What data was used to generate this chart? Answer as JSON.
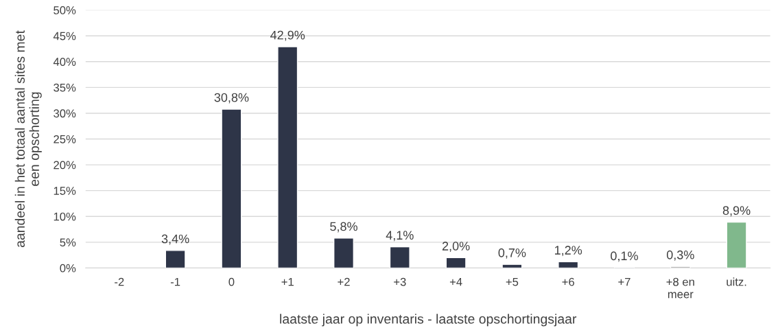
{
  "chart_data": {
    "type": "bar",
    "xlabel": "laatste jaar op inventaris - laatste opschortingsjaar",
    "ylabel": "aandeel in het totaal aantal sites met\neen opschorting",
    "categories": [
      "-2",
      "-1",
      "0",
      "+1",
      "+2",
      "+3",
      "+4",
      "+5",
      "+6",
      "+7",
      "+8 en\nmeer",
      "uitz."
    ],
    "values": [
      null,
      3.4,
      30.8,
      42.9,
      5.8,
      4.1,
      2.0,
      0.7,
      1.2,
      0.1,
      0.3,
      8.9
    ],
    "value_labels": [
      null,
      "3,4%",
      "30,8%",
      "42,9%",
      "5,8%",
      "4,1%",
      "2,0%",
      "0,7%",
      "1,2%",
      "0,1%",
      "0,3%",
      "8,9%"
    ],
    "colors": [
      "#2e3548",
      "#2e3548",
      "#2e3548",
      "#2e3548",
      "#2e3548",
      "#2e3548",
      "#2e3548",
      "#2e3548",
      "#2e3548",
      "#2e3548",
      "#a6a6a6",
      "#80b88c"
    ],
    "ylim": [
      0,
      50
    ],
    "yticks": [
      {
        "value": 0,
        "label": "0%"
      },
      {
        "value": 5,
        "label": "5%"
      },
      {
        "value": 10,
        "label": "10%"
      },
      {
        "value": 15,
        "label": "15%"
      },
      {
        "value": 20,
        "label": "20%"
      },
      {
        "value": 25,
        "label": "25%"
      },
      {
        "value": 30,
        "label": "30%"
      },
      {
        "value": 35,
        "label": "35%"
      },
      {
        "value": 40,
        "label": "40%"
      },
      {
        "value": 45,
        "label": "45%"
      },
      {
        "value": 50,
        "label": "50%"
      }
    ],
    "grid": "y",
    "legend": false
  }
}
